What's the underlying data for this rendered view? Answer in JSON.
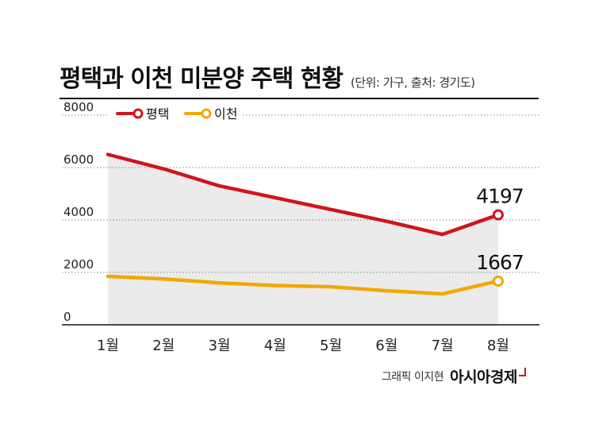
{
  "title": "평택과 이천 미분양 주택 현황",
  "subtitle": "(단위: 가구, 출처: 경기도)",
  "credit": {
    "graphic": "그래픽 이지현",
    "brand": "아시아경제"
  },
  "colors": {
    "pyeongtaek": "#d0151e",
    "icheon": "#f2a800",
    "area": "#ebebeb",
    "grid": "#888888"
  },
  "chart_data": {
    "type": "line",
    "title": "평택과 이천 미분양 주택 현황",
    "xlabel": "",
    "ylabel": "",
    "categories": [
      "1월",
      "2월",
      "3월",
      "4월",
      "5월",
      "6월",
      "7월",
      "8월"
    ],
    "yticks": [
      "0",
      "2000",
      "4000",
      "6000",
      "8000"
    ],
    "ylim": [
      0,
      8000
    ],
    "legend_position": "top-left",
    "series": [
      {
        "name": "평택",
        "values": [
          6500,
          5950,
          5300,
          4850,
          4400,
          3950,
          3450,
          4197
        ],
        "end_label": "4197"
      },
      {
        "name": "이천",
        "values": [
          1850,
          1750,
          1600,
          1500,
          1450,
          1300,
          1180,
          1667
        ],
        "end_label": "1667"
      }
    ]
  }
}
